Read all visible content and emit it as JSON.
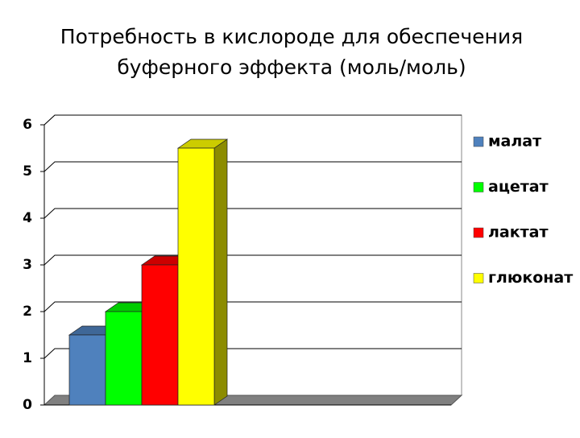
{
  "chart_data": {
    "type": "bar3d",
    "title": [
      "Потребность в кислороде для обеспечения",
      "буферного эффекта (моль/моль)"
    ],
    "series": [
      {
        "name": "малат",
        "color": "#4f81bd",
        "values": [
          1.5
        ]
      },
      {
        "name": "ацетат",
        "color": "#00ff00",
        "values": [
          2
        ]
      },
      {
        "name": "лактат",
        "color": "#ff0000",
        "values": [
          3
        ]
      },
      {
        "name": "глюконат",
        "color": "#ffff00",
        "values": [
          5.5
        ]
      }
    ],
    "ylim": [
      0,
      6
    ],
    "yticks": [
      0,
      1,
      2,
      3,
      4,
      5,
      6
    ],
    "grid": true,
    "legend": "right"
  }
}
